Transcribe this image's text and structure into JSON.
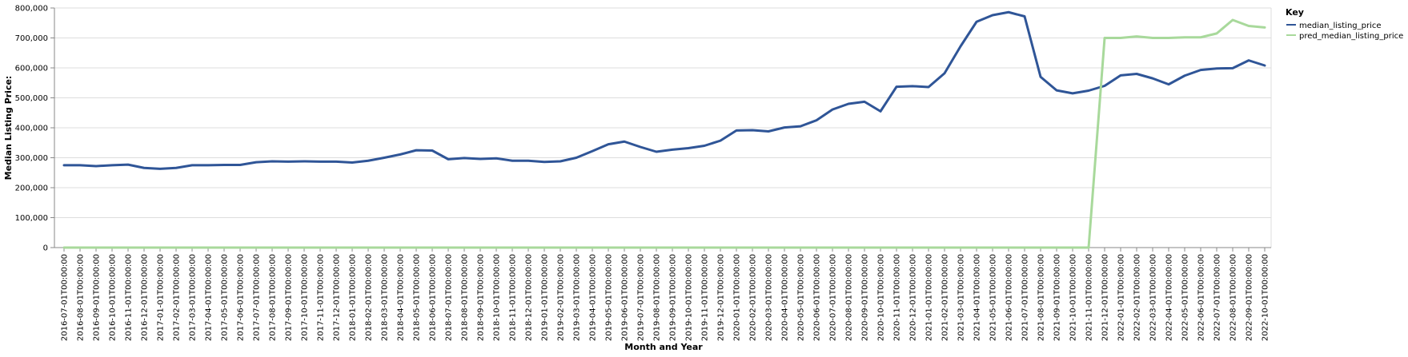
{
  "chart_data": {
    "type": "line",
    "title": "",
    "xlabel": "Month and Year",
    "ylabel": "Median Listing Price:",
    "ylim": [
      0,
      800000
    ],
    "y_ticks": [
      "0",
      "100,000",
      "200,000",
      "300,000",
      "400,000",
      "500,000",
      "600,000",
      "700,000",
      "800,000"
    ],
    "grid": true,
    "legend": {
      "title": "Key",
      "placement": "top-right-outside"
    },
    "x": [
      "2016-07-01T00:00:00",
      "2016-08-01T00:00:00",
      "2016-09-01T00:00:00",
      "2016-10-01T00:00:00",
      "2016-11-01T00:00:00",
      "2016-12-01T00:00:00",
      "2017-01-01T00:00:00",
      "2017-02-01T00:00:00",
      "2017-03-01T00:00:00",
      "2017-04-01T00:00:00",
      "2017-05-01T00:00:00",
      "2017-06-01T00:00:00",
      "2017-07-01T00:00:00",
      "2017-08-01T00:00:00",
      "2017-09-01T00:00:00",
      "2017-10-01T00:00:00",
      "2017-11-01T00:00:00",
      "2017-12-01T00:00:00",
      "2018-01-01T00:00:00",
      "2018-02-01T00:00:00",
      "2018-03-01T00:00:00",
      "2018-04-01T00:00:00",
      "2018-05-01T00:00:00",
      "2018-06-01T00:00:00",
      "2018-07-01T00:00:00",
      "2018-08-01T00:00:00",
      "2018-09-01T00:00:00",
      "2018-10-01T00:00:00",
      "2018-11-01T00:00:00",
      "2018-12-01T00:00:00",
      "2019-01-01T00:00:00",
      "2019-02-01T00:00:00",
      "2019-03-01T00:00:00",
      "2019-04-01T00:00:00",
      "2019-05-01T00:00:00",
      "2019-06-01T00:00:00",
      "2019-07-01T00:00:00",
      "2019-08-01T00:00:00",
      "2019-09-01T00:00:00",
      "2019-10-01T00:00:00",
      "2019-11-01T00:00:00",
      "2019-12-01T00:00:00",
      "2020-01-01T00:00:00",
      "2020-02-01T00:00:00",
      "2020-03-01T00:00:00",
      "2020-04-01T00:00:00",
      "2020-05-01T00:00:00",
      "2020-06-01T00:00:00",
      "2020-07-01T00:00:00",
      "2020-08-01T00:00:00",
      "2020-09-01T00:00:00",
      "2020-10-01T00:00:00",
      "2020-11-01T00:00:00",
      "2020-12-01T00:00:00",
      "2021-01-01T00:00:00",
      "2021-02-01T00:00:00",
      "2021-03-01T00:00:00",
      "2021-04-01T00:00:00",
      "2021-05-01T00:00:00",
      "2021-06-01T00:00:00",
      "2021-07-01T00:00:00",
      "2021-08-01T00:00:00",
      "2021-09-01T00:00:00",
      "2021-10-01T00:00:00",
      "2021-11-01T00:00:00",
      "2021-12-01T00:00:00",
      "2022-01-01T00:00:00",
      "2022-02-01T00:00:00",
      "2022-03-01T00:00:00",
      "2022-04-01T00:00:00",
      "2022-05-01T00:00:00",
      "2022-06-01T00:00:00",
      "2022-07-01T00:00:00",
      "2022-08-01T00:00:00",
      "2022-09-01T00:00:00",
      "2022-10-01T00:00:00"
    ],
    "series": [
      {
        "name": "median_listing_price",
        "color": "#2f5597",
        "values": [
          275000,
          275000,
          272000,
          275000,
          277000,
          266000,
          263000,
          266000,
          275000,
          275000,
          276000,
          276000,
          285000,
          288000,
          287000,
          288000,
          287000,
          287000,
          284000,
          290000,
          300000,
          311000,
          325000,
          324000,
          295000,
          299000,
          296000,
          298000,
          290000,
          290000,
          286000,
          288000,
          300000,
          322000,
          345000,
          354000,
          336000,
          320000,
          327000,
          332000,
          340000,
          357000,
          391000,
          392000,
          388000,
          401000,
          405000,
          425000,
          461000,
          480000,
          487000,
          455000,
          537000,
          539000,
          536000,
          582000,
          672000,
          754000,
          776000,
          786000,
          772000,
          570000,
          525000,
          515000,
          524000,
          540000,
          575000,
          580000,
          565000,
          545000,
          574000,
          593000,
          598000,
          599000,
          625000,
          608000
        ]
      },
      {
        "name": "pred_median_listing_price",
        "color": "#a8d99b",
        "values": [
          0,
          0,
          0,
          0,
          0,
          0,
          0,
          0,
          0,
          0,
          0,
          0,
          0,
          0,
          0,
          0,
          0,
          0,
          0,
          0,
          0,
          0,
          0,
          0,
          0,
          0,
          0,
          0,
          0,
          0,
          0,
          0,
          0,
          0,
          0,
          0,
          0,
          0,
          0,
          0,
          0,
          0,
          0,
          0,
          0,
          0,
          0,
          0,
          0,
          0,
          0,
          0,
          0,
          0,
          0,
          0,
          0,
          0,
          0,
          0,
          0,
          0,
          0,
          0,
          0,
          700000,
          700000,
          705000,
          700000,
          700000,
          702000,
          702000,
          715000,
          760000,
          740000,
          735000
        ]
      }
    ]
  }
}
